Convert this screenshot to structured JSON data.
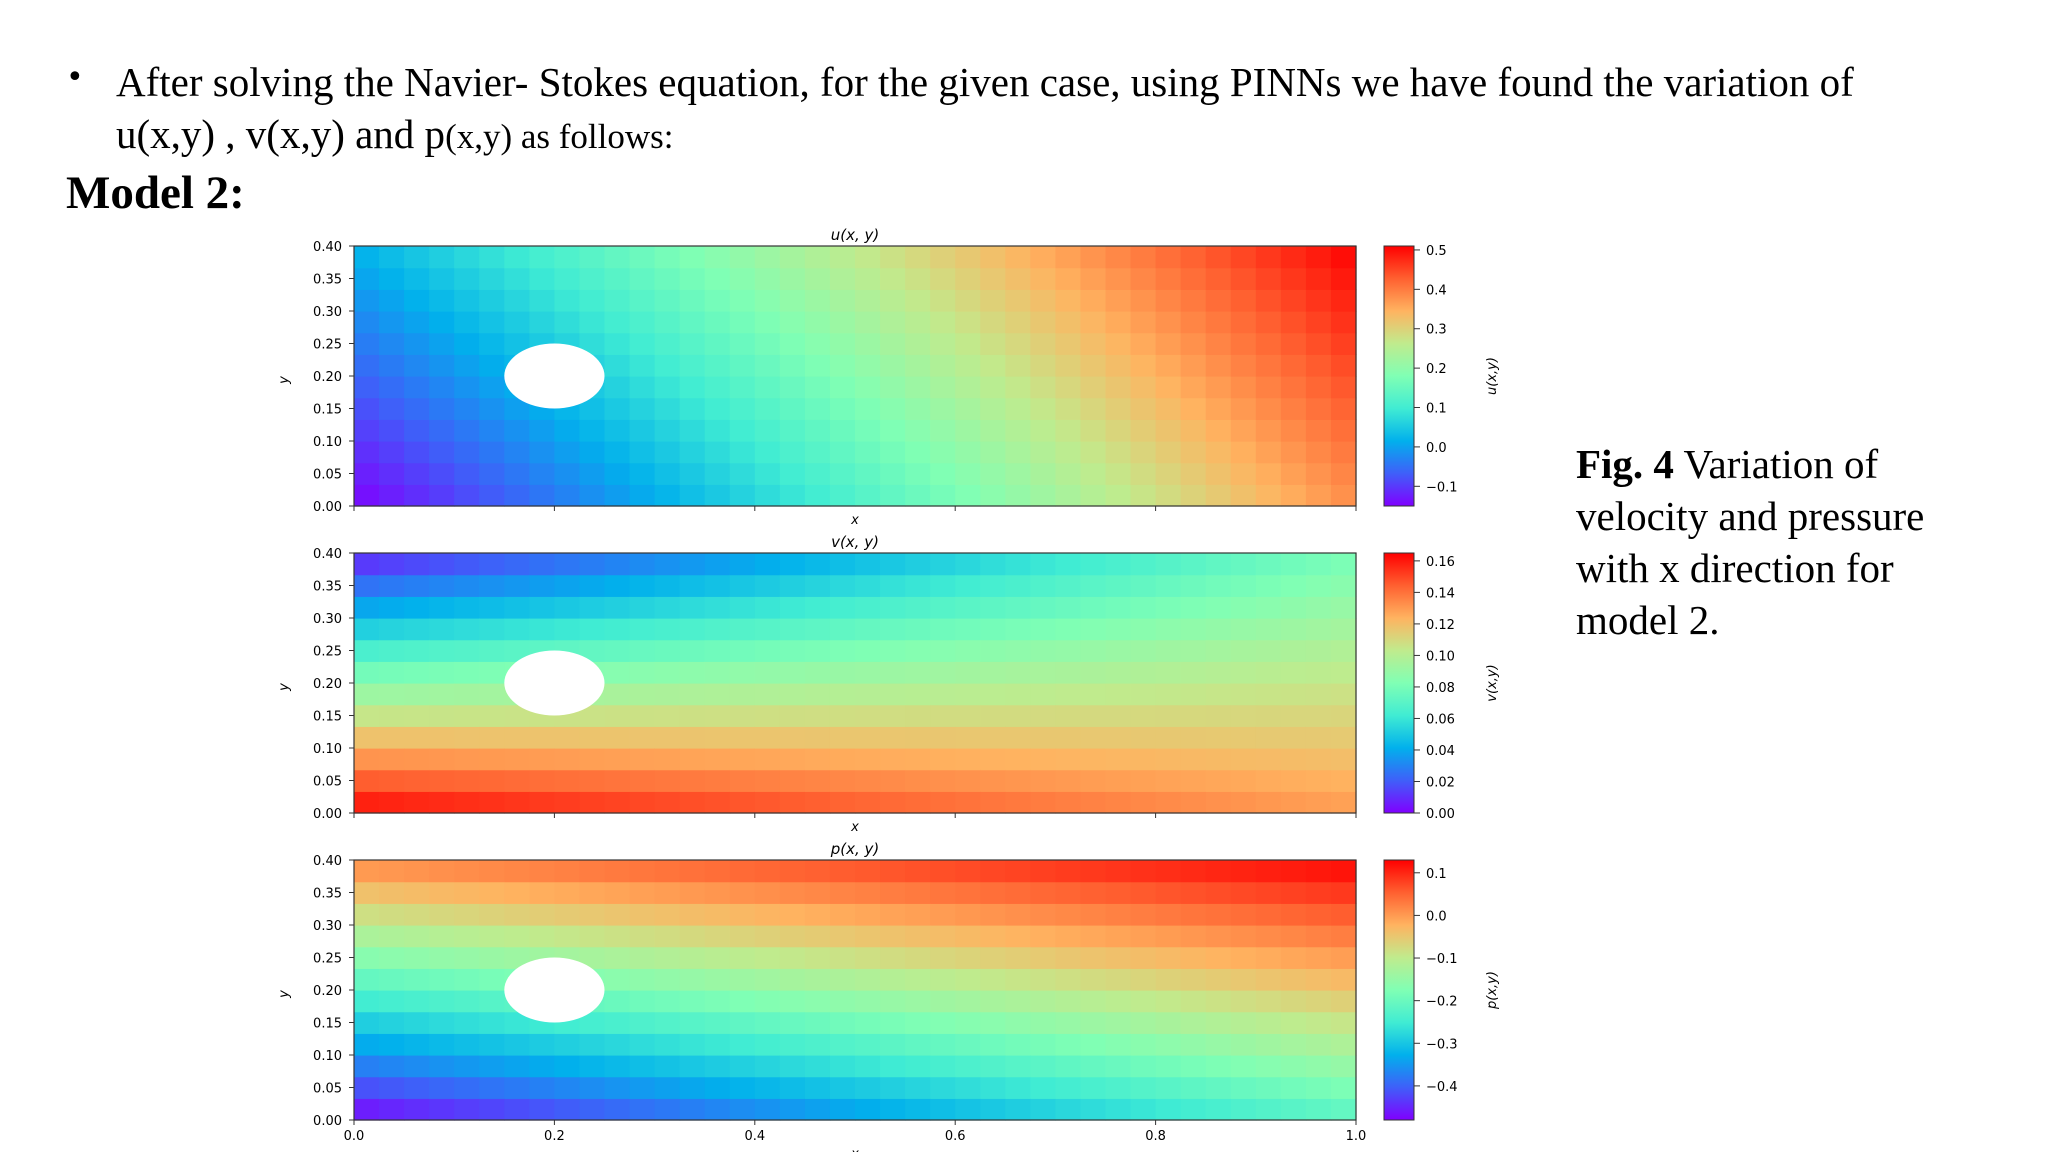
{
  "bullet": {
    "symbol": "•",
    "line1": "After solving the Navier- Stokes equation, for the given case, using PINNs we have found the variation of",
    "line2_a": "u(x,y) , v(x,y) and p",
    "line2_b": "(x,y) as follows:"
  },
  "heading": "Model 2:",
  "caption": {
    "bold": "Fig. 4",
    "text": " Variation of velocity and pressure with x direction for model 2."
  },
  "chart_data": [
    {
      "type": "heatmap",
      "title": "u(x, y)",
      "xlabel": "x",
      "ylabel": "y",
      "colorbar_label": "u(x,y)",
      "xlim": [
        0.0,
        1.0
      ],
      "ylim": [
        0.0,
        0.4
      ],
      "x_ticks": [],
      "y_ticks": [
        "0.00",
        "0.05",
        "0.10",
        "0.15",
        "0.20",
        "0.25",
        "0.30",
        "0.35",
        "0.40"
      ],
      "colorbar_range": [
        -0.15,
        0.51
      ],
      "colorbar_ticks": [
        "0.5",
        "0.4",
        "0.3",
        "0.2",
        "0.1",
        "0.0",
        "−0.1"
      ],
      "colorbar_tick_values": [
        0.5,
        0.4,
        0.3,
        0.2,
        0.1,
        0.0,
        -0.1
      ],
      "obstacle": {
        "shape": "circle",
        "center": [
          0.2,
          0.2
        ],
        "radius": 0.05
      },
      "field_corners": {
        "x0_y0": -0.15,
        "x1_y0": 0.38,
        "x0_y1": 0.02,
        "x1_y1": 0.51
      }
    },
    {
      "type": "heatmap",
      "title": "v(x, y)",
      "xlabel": "x",
      "ylabel": "y",
      "colorbar_label": "v(x,y)",
      "xlim": [
        0.0,
        1.0
      ],
      "ylim": [
        0.0,
        0.4
      ],
      "x_ticks": [],
      "y_ticks": [
        "0.00",
        "0.05",
        "0.10",
        "0.15",
        "0.20",
        "0.25",
        "0.30",
        "0.35",
        "0.40"
      ],
      "colorbar_range": [
        0.0,
        0.165
      ],
      "colorbar_ticks": [
        "0.16",
        "0.14",
        "0.12",
        "0.10",
        "0.08",
        "0.06",
        "0.04",
        "0.02",
        "0.00"
      ],
      "colorbar_tick_values": [
        0.16,
        0.14,
        0.12,
        0.1,
        0.08,
        0.06,
        0.04,
        0.02,
        0.0
      ],
      "obstacle": {
        "shape": "circle",
        "center": [
          0.2,
          0.2
        ],
        "radius": 0.05
      },
      "field_corners": {
        "x0_y0": 0.165,
        "x1_y0": 0.13,
        "x0_y1": 0.005,
        "x1_y1": 0.08
      }
    },
    {
      "type": "heatmap",
      "title": "p(x, y)",
      "xlabel": "x",
      "ylabel": "y",
      "colorbar_label": "p(x,y)",
      "xlim": [
        0.0,
        1.0
      ],
      "ylim": [
        0.0,
        0.4
      ],
      "x_ticks": [
        "0.0",
        "0.2",
        "0.4",
        "0.6",
        "0.8",
        "1.0"
      ],
      "y_ticks": [
        "0.00",
        "0.05",
        "0.10",
        "0.15",
        "0.20",
        "0.25",
        "0.30",
        "0.35",
        "0.40"
      ],
      "colorbar_range": [
        -0.48,
        0.13
      ],
      "colorbar_ticks": [
        "0.1",
        "0.0",
        "−0.1",
        "−0.2",
        "−0.3",
        "−0.4"
      ],
      "colorbar_tick_values": [
        0.1,
        0.0,
        -0.1,
        -0.2,
        -0.3,
        -0.4
      ],
      "obstacle": {
        "shape": "circle",
        "center": [
          0.2,
          0.2
        ],
        "radius": 0.05
      },
      "field_corners": {
        "x0_y0": -0.48,
        "x1_y0": -0.22,
        "x0_y1": 0.02,
        "x1_y1": 0.13
      }
    }
  ]
}
